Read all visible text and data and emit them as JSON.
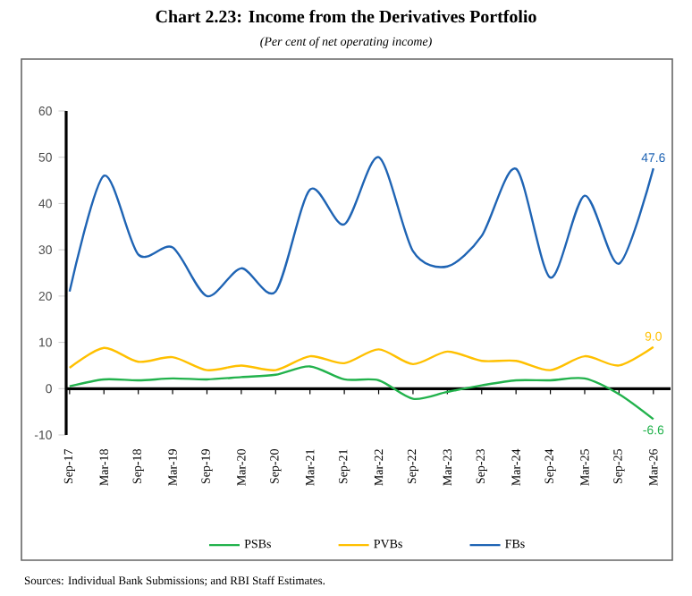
{
  "chart_data": {
    "type": "line",
    "title": "Chart 2.23: Income from the Derivatives Portfolio",
    "subtitle": "(Per cent of net operating income)",
    "categories": [
      "Sep-17",
      "Mar-18",
      "Sep-18",
      "Mar-19",
      "Sep-19",
      "Mar-20",
      "Sep-20",
      "Mar-21",
      "Sep-21",
      "Mar-22",
      "Sep-22",
      "Mar-23",
      "Sep-23",
      "Mar-24",
      "Sep-24",
      "Mar-25",
      "Sep-25",
      "Mar-26"
    ],
    "series": [
      {
        "name": "PSBs",
        "color": "#22b24c",
        "values": [
          0.5,
          2,
          1.8,
          2.2,
          2,
          2.5,
          3,
          4.8,
          2,
          1.8,
          -2.2,
          -0.7,
          0.7,
          1.8,
          1.8,
          2.2,
          -1.2,
          -6.6
        ],
        "value_labels": [
          null,
          null,
          null,
          null,
          null,
          null,
          null,
          null,
          null,
          null,
          null,
          null,
          null,
          null,
          null,
          null,
          null,
          "-6.6"
        ]
      },
      {
        "name": "PVBs",
        "color": "#ffc000",
        "values": [
          4.5,
          8.8,
          5.8,
          6.8,
          4,
          5,
          4,
          7,
          5.5,
          8.5,
          5.3,
          8,
          6,
          6,
          4,
          7,
          5,
          9.0
        ],
        "value_labels": [
          null,
          null,
          null,
          null,
          null,
          null,
          null,
          null,
          null,
          null,
          null,
          null,
          null,
          null,
          null,
          null,
          null,
          "9.0"
        ]
      },
      {
        "name": "FBs",
        "color": "#1f64b4",
        "values": [
          21,
          46,
          29,
          30.5,
          20,
          26,
          21,
          43,
          35.5,
          50,
          29.7,
          26.4,
          33,
          47.5,
          24,
          41.7,
          27,
          47.6
        ],
        "value_labels": [
          null,
          null,
          null,
          null,
          null,
          null,
          null,
          null,
          null,
          null,
          null,
          null,
          null,
          null,
          null,
          null,
          null,
          "47.6"
        ]
      }
    ],
    "ylim": [
      -10,
      60
    ],
    "yticks": [
      -10,
      0,
      10,
      20,
      30,
      40,
      50,
      60
    ],
    "legend": "bottom",
    "annotations": [
      "Sources: Individual Bank Submissions; and RBI Staff Estimates."
    ]
  }
}
